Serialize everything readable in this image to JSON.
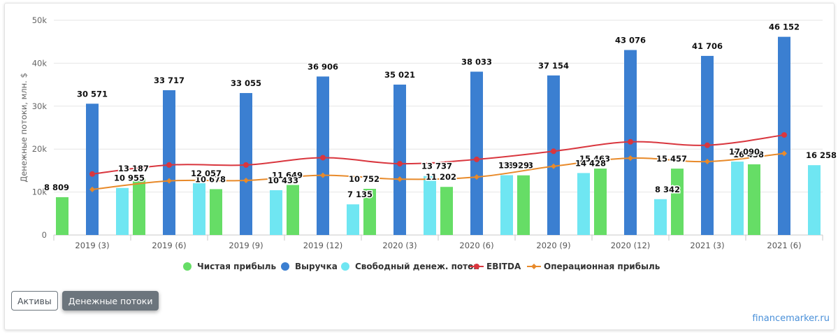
{
  "chart_data": {
    "type": "bar",
    "ylabel": "Денежные потоки, млн. $",
    "ylim": [
      0,
      50000
    ],
    "yticks": [
      "0",
      "10k",
      "20k",
      "30k",
      "40k",
      "50k"
    ],
    "grid": true,
    "legend_position": "bottom",
    "categories": [
      "2019 (3)",
      "2019 (6)",
      "2019 (9)",
      "2019 (12)",
      "2020 (3)",
      "2020 (6)",
      "2020 (9)",
      "2020 (12)",
      "2021 (3)",
      "2021 (6)"
    ],
    "series": [
      {
        "name": "Чистая прибыль",
        "kind": "bar",
        "color": "#66dd66",
        "values": [
          8809,
          13187,
          10678,
          11649,
          10752,
          11202,
          13893,
          15463,
          15457,
          16458
        ],
        "labels": [
          "8 809",
          "13 187",
          "10 678",
          "11 649",
          "10 752",
          "11 202",
          "13 893",
          "15 463",
          "15 457",
          "16 458"
        ]
      },
      {
        "name": "Выручка",
        "kind": "bar",
        "color": "#3b7fd1",
        "values": [
          30571,
          33717,
          33055,
          36906,
          35021,
          38033,
          37154,
          43076,
          41706,
          46152
        ],
        "labels": [
          "30 571",
          "33 717",
          "33 055",
          "36 906",
          "35 021",
          "38 033",
          "37 154",
          "43 076",
          "41 706",
          "46 152"
        ]
      },
      {
        "name": "Свободный денеж. поток",
        "kind": "bar",
        "color": "#6fe6f2",
        "values": [
          10955,
          12057,
          10433,
          7135,
          13737,
          13929,
          14428,
          8342,
          17090,
          16258
        ],
        "labels": [
          "10 955",
          "12 057",
          "10 433",
          "7 135",
          "13 737",
          "13 929",
          "14 428",
          "8 342",
          "17 090",
          "16 258"
        ]
      },
      {
        "name": "EBITDA",
        "kind": "line",
        "color": "#d9363e",
        "values": [
          14200,
          16300,
          16300,
          18000,
          16600,
          17600,
          19500,
          21700,
          20900,
          23300
        ]
      },
      {
        "name": "Операционная прибыль",
        "kind": "line",
        "color": "#e88a2a",
        "values": [
          10600,
          12600,
          12700,
          13900,
          13000,
          13500,
          16000,
          17900,
          17100,
          19000
        ]
      }
    ]
  },
  "tabs": {
    "assets_label": "Активы",
    "cashflow_label": "Денежные потоки"
  },
  "credit": "financemarker.ru"
}
